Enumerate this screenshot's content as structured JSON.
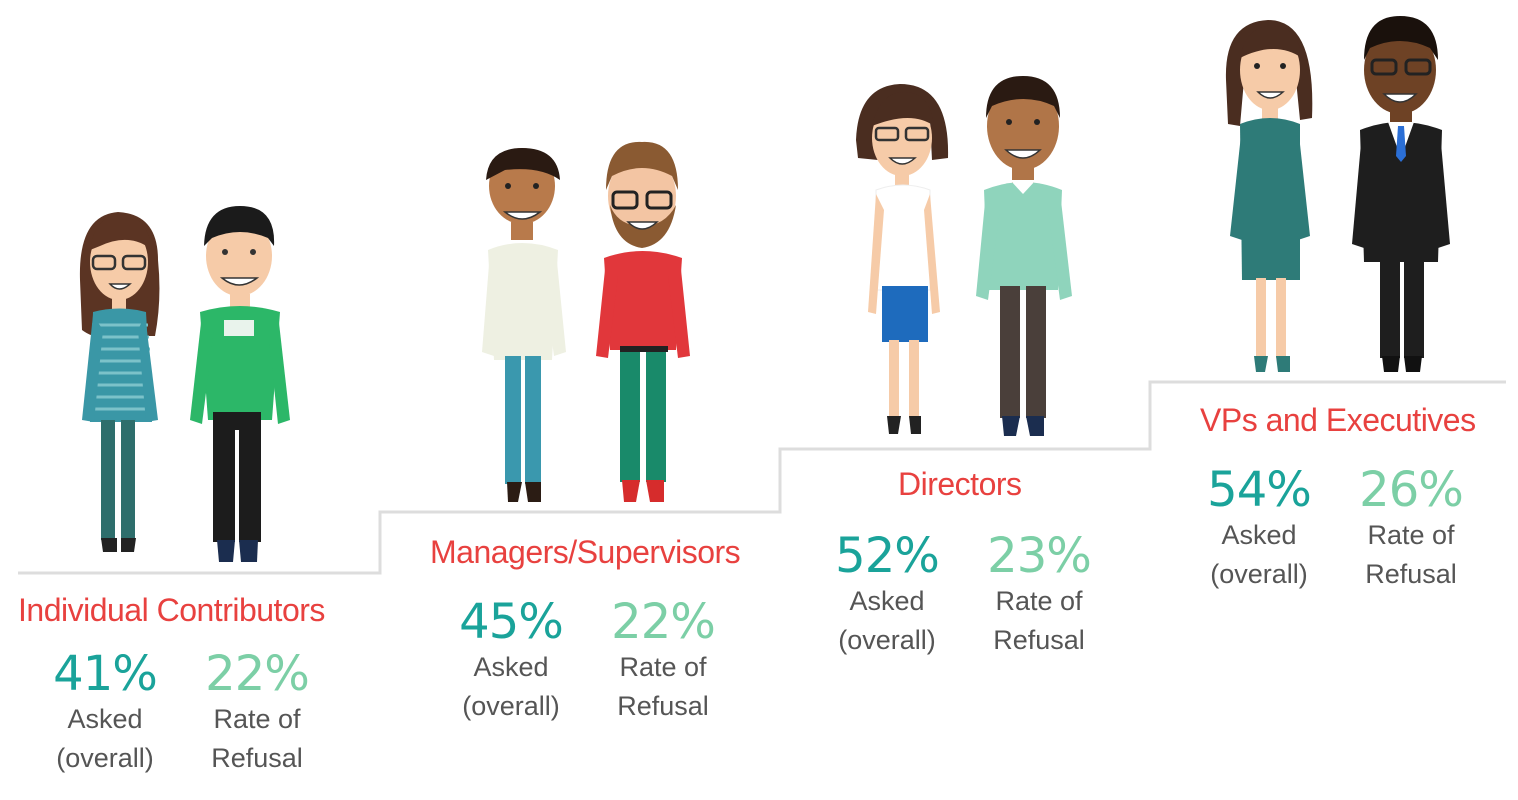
{
  "colors": {
    "title_red": "#e8413f",
    "asked_teal": "#1aa39a",
    "refusal_mint": "#7ccfa6",
    "label_gray": "#555555",
    "step_line": "#dddddd"
  },
  "tiers": [
    {
      "title": "Individual Contributors",
      "asked_value": "41%",
      "asked_label_1": "Asked",
      "asked_label_2": "(overall)",
      "refusal_value": "22%",
      "refusal_label_1": "Rate of",
      "refusal_label_2": "Refusal"
    },
    {
      "title": "Managers/Supervisors",
      "asked_value": "45%",
      "asked_label_1": "Asked",
      "asked_label_2": "(overall)",
      "refusal_value": "22%",
      "refusal_label_1": "Rate of",
      "refusal_label_2": "Refusal"
    },
    {
      "title": "Directors",
      "asked_value": "52%",
      "asked_label_1": "Asked",
      "asked_label_2": "(overall)",
      "refusal_value": "23%",
      "refusal_label_1": "Rate of",
      "refusal_label_2": "Refusal"
    },
    {
      "title": "VPs and Executives",
      "asked_value": "54%",
      "asked_label_1": "Asked",
      "asked_label_2": "(overall)",
      "refusal_value": "26%",
      "refusal_label_1": "Rate of",
      "refusal_label_2": "Refusal"
    }
  ]
}
